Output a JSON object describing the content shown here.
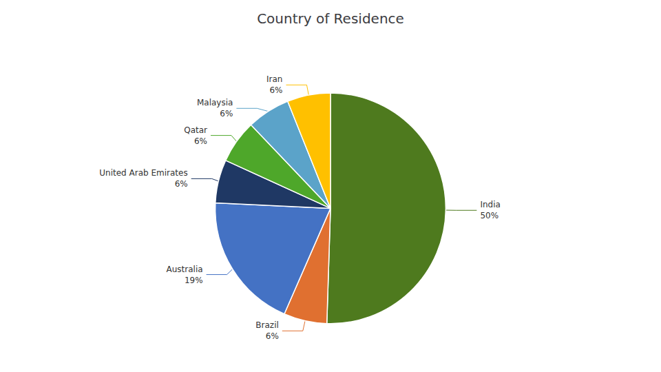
{
  "chart_data": {
    "type": "pie",
    "title": "Country of Residence",
    "categories": [
      "India",
      "Brazil",
      "Australia",
      "United Arab Emirates",
      "Qatar",
      "Malaysia",
      "Iran"
    ],
    "values": [
      50,
      6,
      19,
      6,
      6,
      6,
      6
    ],
    "value_labels": [
      "50%",
      "6%",
      "19%",
      "6%",
      "6%",
      "6%",
      "6%"
    ],
    "colors": [
      "#4E7A1E",
      "#E07030",
      "#4472C4",
      "#1F3864",
      "#4EA72A",
      "#5BA3C9",
      "#FFC000"
    ],
    "data_labels": true
  }
}
